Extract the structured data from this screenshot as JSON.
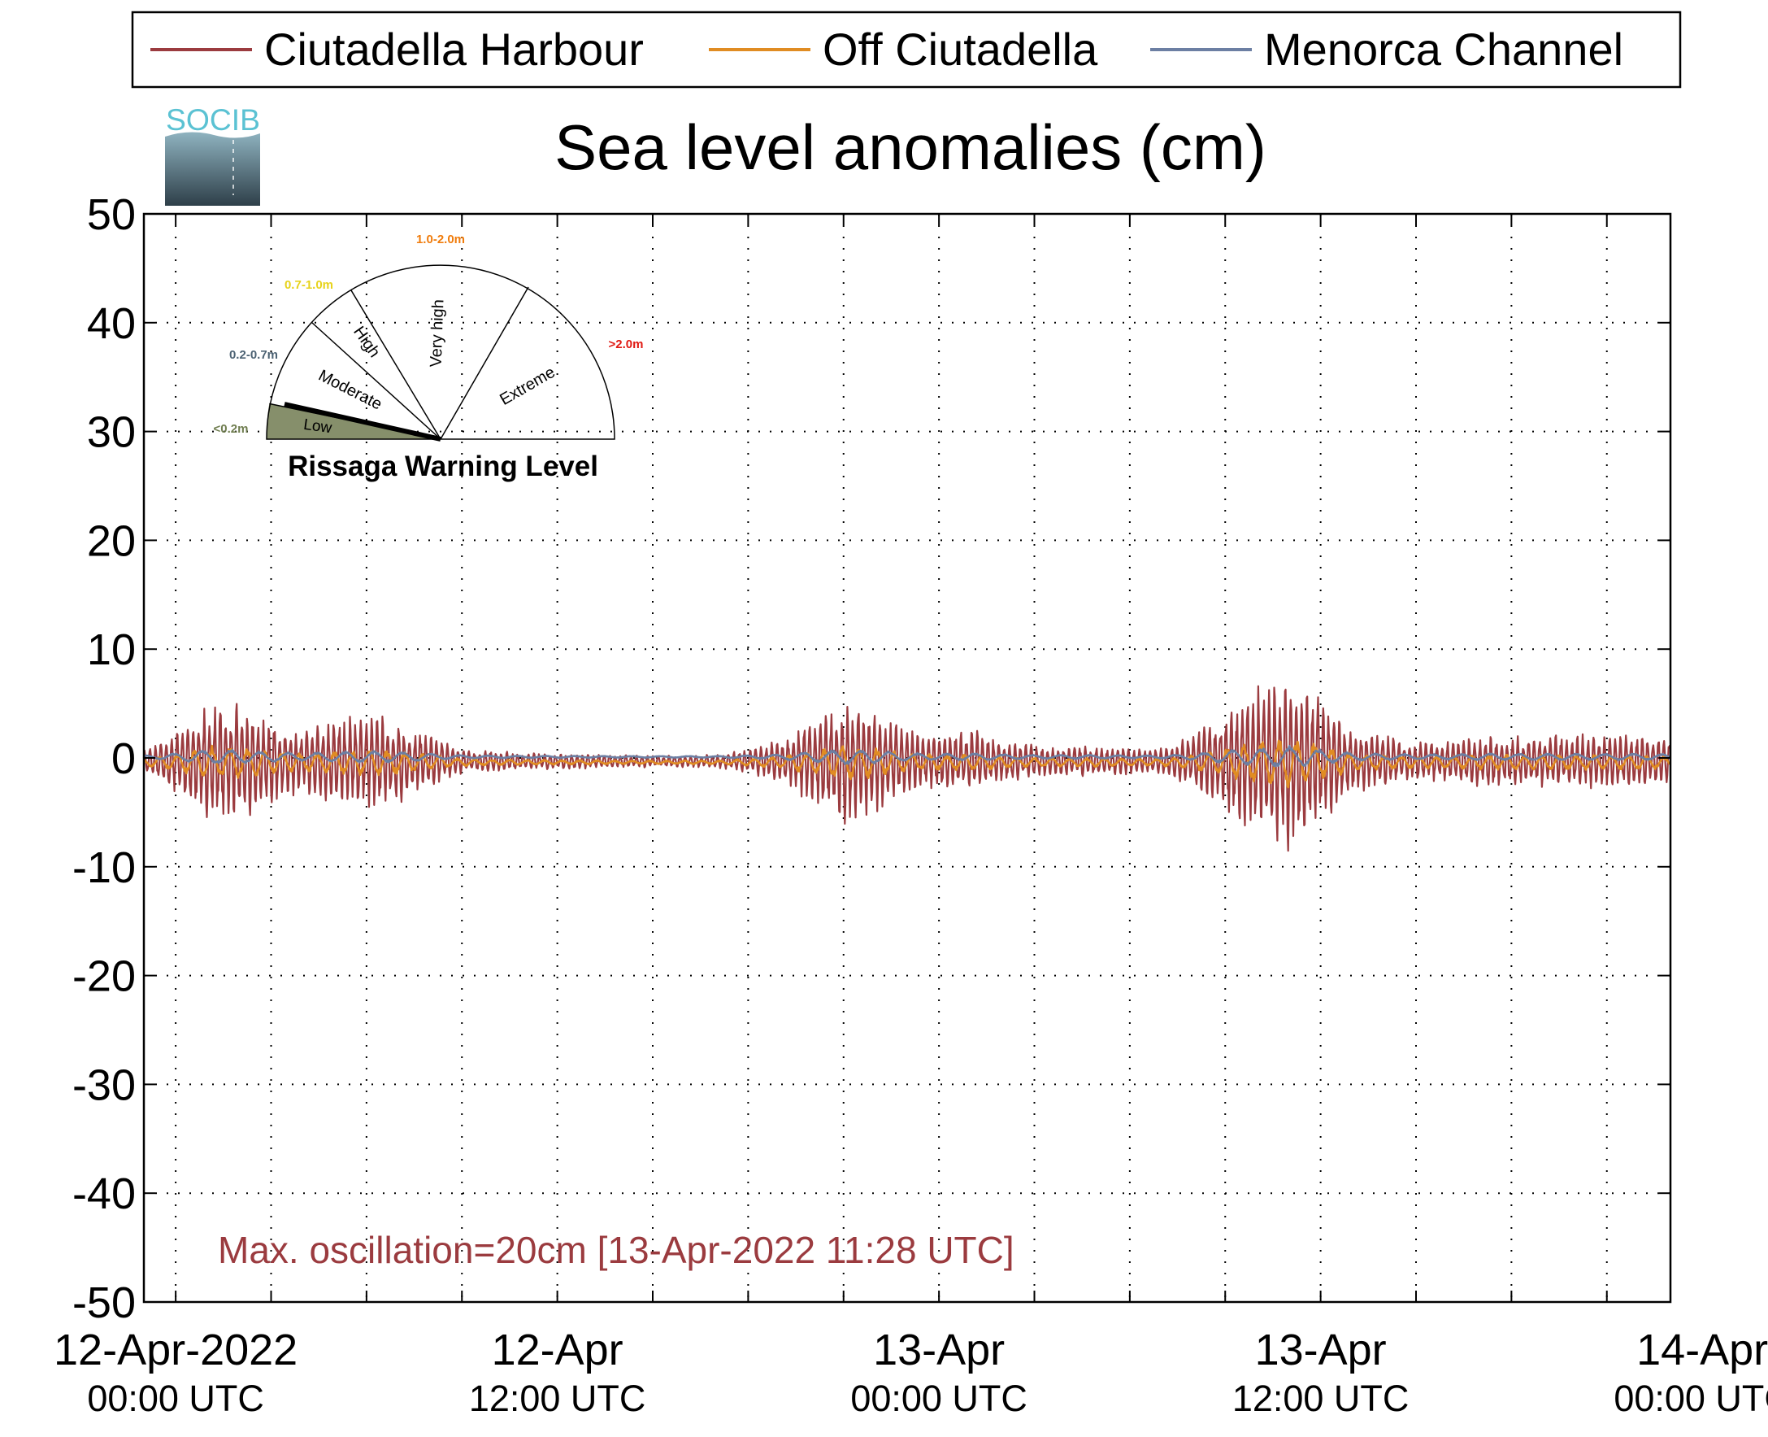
{
  "chart_data": {
    "type": "line",
    "title": "Sea level anomalies (cm)",
    "ylim": [
      -50,
      50
    ],
    "yticks": [
      "50",
      "40",
      "30",
      "20",
      "10",
      "0",
      "-10",
      "-20",
      "-30",
      "-40",
      "-50"
    ],
    "ytick_values": [
      50,
      40,
      30,
      20,
      10,
      0,
      -10,
      -20,
      -30,
      -40,
      -50
    ],
    "xlim_hours": [
      -1,
      47
    ],
    "xticks": [
      {
        "line1": "12-Apr-2022",
        "line2": "00:00 UTC",
        "hour": 0
      },
      {
        "line1": "12-Apr",
        "line2": "12:00 UTC",
        "hour": 12
      },
      {
        "line1": "13-Apr",
        "line2": "00:00 UTC",
        "hour": 24
      },
      {
        "line1": "13-Apr",
        "line2": "12:00 UTC",
        "hour": 36
      },
      {
        "line1": "14-Apr",
        "line2": "00:00 UTC",
        "hour": 48
      }
    ],
    "grid": true,
    "legend_position": "top",
    "series": [
      {
        "name": "Ciutadella Harbour",
        "color": "#9b3b3f",
        "envelope": {
          "hours": [
            -1,
            0,
            1,
            2,
            3,
            4,
            5,
            6,
            7,
            8,
            9,
            10,
            11,
            12,
            13,
            14,
            15,
            16,
            17,
            18,
            19,
            20,
            21,
            22,
            23,
            24,
            25,
            26,
            27,
            28,
            29,
            30,
            31,
            32,
            33,
            34,
            35,
            36,
            37,
            38,
            39,
            40,
            41,
            42,
            43,
            44,
            45,
            46,
            47
          ],
          "amplitude_cm": [
            1,
            3,
            5.5,
            5.5,
            4,
            3,
            4,
            4.5,
            4,
            2.5,
            1.2,
            1,
            0.8,
            0.8,
            0.7,
            0.6,
            0.6,
            0.6,
            0.6,
            1.2,
            2,
            4,
            6,
            5,
            3,
            2.5,
            3,
            2,
            1.5,
            1.5,
            1.5,
            1.2,
            1.2,
            2.5,
            5,
            7,
            8.5,
            6,
            3,
            2.5,
            2,
            2,
            2.5,
            2.5,
            2.5,
            2.5,
            2.5,
            2.5,
            2
          ]
        }
      },
      {
        "name": "Off Ciutadella",
        "color": "#e08c23"
      },
      {
        "name": "Menorca Channel",
        "color": "#6c7fa3"
      }
    ],
    "annotation": {
      "text": "Max. oscillation=20cm [13-Apr-2022 11:28 UTC]",
      "color": "#9b3b3f"
    }
  },
  "logo": {
    "text": "SOCIB",
    "color": "#5bc2d3",
    "gradient": [
      "#8fb3c0",
      "#2e3f49"
    ]
  },
  "gauge": {
    "title": "Rissaga Warning Level",
    "current_level": "Low",
    "segments": [
      {
        "label": "Low",
        "range": "<0.2m",
        "range_color": "#6f7d4f",
        "fill": "#868f6b"
      },
      {
        "label": "Moderate",
        "range": "0.2-0.7m",
        "range_color": "#4c6273",
        "fill": "none"
      },
      {
        "label": "High",
        "range": "0.7-1.0m",
        "range_color": "#e7d31c",
        "fill": "none"
      },
      {
        "label": "Very high",
        "range": "1.0-2.0m",
        "range_color": "#f07c0c",
        "fill": "none"
      },
      {
        "label": "Extreme",
        "range": ">2.0m",
        "range_color": "#e01a13",
        "fill": "none"
      }
    ]
  }
}
